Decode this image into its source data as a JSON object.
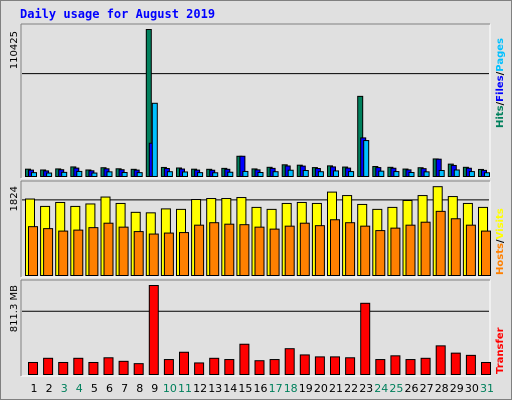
{
  "title": "Daily usage for August 2019",
  "colors": {
    "hits": "#00805c",
    "files": "#0000ff",
    "pages": "#00c0ff",
    "sites": "#ff8000",
    "visits": "#ffff00",
    "kbytes": "#ff0000",
    "weekday_label": "#000000",
    "weekend_label": "#00805c",
    "legend_hits": "#00805c",
    "legend_sep": "#000000",
    "legend_files": "#0000ff",
    "legend_pages": "#00c0ff",
    "legend_hosts": "#ff8000",
    "legend_visits": "#ffff00",
    "legend_transfer": "#ff0000"
  },
  "chart_data": [
    {
      "type": "bar",
      "panel": "hits",
      "y_label": "110425",
      "ylim": [
        0,
        110425
      ],
      "legend": [
        "Hits",
        "/",
        "Files",
        "/",
        "Pages"
      ],
      "categories": [
        "1",
        "2",
        "3",
        "4",
        "5",
        "6",
        "7",
        "8",
        "9",
        "10",
        "11",
        "12",
        "13",
        "14",
        "15",
        "16",
        "17",
        "18",
        "19",
        "20",
        "21",
        "22",
        "23",
        "24",
        "25",
        "26",
        "27",
        "28",
        "29",
        "30",
        "31"
      ],
      "weekend_days": [
        "3",
        "4",
        "10",
        "11",
        "17",
        "18",
        "24",
        "25",
        "31"
      ],
      "series": [
        {
          "name": "Hits",
          "values": [
            5500,
            4900,
            5700,
            7200,
            4900,
            6600,
            5800,
            5400,
            110425,
            6800,
            6400,
            5500,
            5400,
            6100,
            15200,
            5700,
            6900,
            8800,
            8500,
            6700,
            8000,
            7100,
            60200,
            7500,
            6900,
            5600,
            6600,
            13200,
            9300,
            6900,
            5300
          ]
        },
        {
          "name": "Files",
          "values": [
            4800,
            4200,
            5100,
            6300,
            4300,
            5800,
            5100,
            4800,
            25000,
            6000,
            5600,
            4800,
            4700,
            5400,
            15200,
            5000,
            6100,
            7900,
            7800,
            6000,
            7200,
            6300,
            29000,
            6700,
            6200,
            5000,
            5900,
            13000,
            8300,
            6200,
            4600
          ]
        },
        {
          "name": "Pages",
          "values": [
            2900,
            2600,
            3100,
            3800,
            2600,
            3500,
            3000,
            2900,
            55000,
            3600,
            3400,
            2900,
            2800,
            3200,
            3800,
            3000,
            3600,
            4700,
            4500,
            3600,
            4200,
            3700,
            27000,
            4000,
            3700,
            3000,
            3500,
            4500,
            4900,
            3700,
            2800
          ]
        }
      ]
    },
    {
      "type": "bar",
      "panel": "visits",
      "y_label": "1824",
      "ylim": [
        0,
        1824
      ],
      "legend": [
        "Hosts",
        "/",
        "Visits"
      ],
      "series": [
        {
          "name": "Visits",
          "values": [
            1550,
            1400,
            1480,
            1400,
            1450,
            1590,
            1460,
            1280,
            1270,
            1350,
            1340,
            1540,
            1560,
            1560,
            1580,
            1380,
            1340,
            1460,
            1480,
            1460,
            1690,
            1620,
            1440,
            1340,
            1380,
            1520,
            1620,
            1800,
            1600,
            1460,
            1380
          ]
        },
        {
          "name": "Hosts",
          "values": [
            990,
            950,
            900,
            920,
            970,
            1060,
            980,
            890,
            840,
            860,
            870,
            1020,
            1070,
            1040,
            1030,
            980,
            940,
            1000,
            1060,
            1010,
            1130,
            1070,
            1000,
            910,
            960,
            1020,
            1080,
            1300,
            1150,
            1020,
            900
          ]
        }
      ]
    },
    {
      "type": "bar",
      "panel": "kbytes",
      "y_label": "811.3 MB",
      "ylim": [
        0,
        1000
      ],
      "legend": [
        "Transfer"
      ],
      "series": [
        {
          "name": "Transfer",
          "values": [
            135,
            182,
            135,
            182,
            135,
            188,
            148,
            122,
            1000,
            168,
            250,
            130,
            182,
            168,
            340,
            155,
            168,
            290,
            220,
            198,
            198,
            188,
            800,
            168,
            210,
            168,
            182,
            322,
            240,
            215,
            135
          ]
        }
      ]
    }
  ]
}
